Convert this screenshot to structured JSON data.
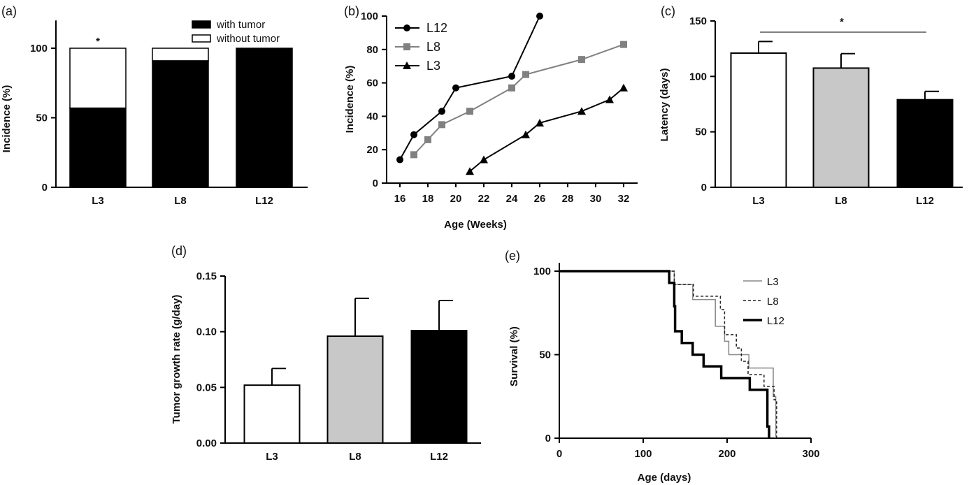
{
  "chart_data": [
    {
      "panel_label": "(a)",
      "type": "bar",
      "stacked": true,
      "categories": [
        "L3",
        "L8",
        "L12"
      ],
      "series": [
        {
          "name": "with tumor",
          "values": [
            57,
            91,
            100
          ],
          "color": "#000000"
        },
        {
          "name": "without tumor",
          "values": [
            43,
            9,
            0
          ],
          "color": "#ffffff"
        }
      ],
      "ylabel": "Incidence (%)",
      "ylim": [
        0,
        120
      ],
      "yticks": [
        0,
        50,
        100
      ],
      "legend": "top-right",
      "annotations": [
        {
          "text": "*",
          "category": "L3"
        }
      ]
    },
    {
      "panel_label": "(b)",
      "type": "line",
      "xlabel": "Age (Weeks)",
      "ylabel": "Incidence (%)",
      "xlim": [
        15,
        33
      ],
      "ylim": [
        0,
        100
      ],
      "xticks": [
        16,
        18,
        20,
        22,
        24,
        26,
        28,
        30,
        32
      ],
      "yticks": [
        0,
        20,
        40,
        60,
        80,
        100
      ],
      "legend": "top-left",
      "series": [
        {
          "name": "L12",
          "marker": "circle",
          "color": "#000000",
          "x": [
            16,
            17,
            19,
            20,
            24,
            26
          ],
          "y": [
            14,
            29,
            43,
            57,
            64,
            100
          ]
        },
        {
          "name": "L8",
          "marker": "square",
          "color": "#808080",
          "x": [
            17,
            18,
            19,
            21,
            24,
            25,
            29,
            32
          ],
          "y": [
            17,
            26,
            35,
            43,
            57,
            65,
            74,
            83
          ]
        },
        {
          "name": "L3",
          "marker": "triangle",
          "color": "#000000",
          "x": [
            21,
            22,
            25,
            26,
            29,
            31,
            32
          ],
          "y": [
            7,
            14,
            29,
            36,
            43,
            50,
            57
          ]
        }
      ]
    },
    {
      "panel_label": "(c)",
      "type": "bar",
      "categories": [
        "L3",
        "L8",
        "L12"
      ],
      "values": [
        121,
        107.5,
        79
      ],
      "errors": [
        10.5,
        13,
        7.5
      ],
      "colors": [
        "#ffffff",
        "#c8c8c8",
        "#000000"
      ],
      "ylabel": "Latency (days)",
      "ylim": [
        0,
        150
      ],
      "yticks": [
        0,
        50,
        100,
        150
      ],
      "annotations": [
        {
          "text": "*",
          "from": "L3",
          "to": "L12"
        }
      ]
    },
    {
      "panel_label": "(d)",
      "type": "bar",
      "categories": [
        "L3",
        "L8",
        "L12"
      ],
      "values": [
        0.052,
        0.096,
        0.101
      ],
      "errors": [
        0.015,
        0.034,
        0.027
      ],
      "colors": [
        "#ffffff",
        "#c8c8c8",
        "#000000"
      ],
      "ylabel": "Tumor growth rate (g/day)",
      "ylim": [
        0,
        0.15
      ],
      "yticks": [
        "0.00",
        "0.05",
        "0.10",
        "0.15"
      ]
    },
    {
      "panel_label": "(e)",
      "type": "line",
      "step": true,
      "xlabel": "Age (days)",
      "ylabel": "Survival (%)",
      "xlim": [
        0,
        300
      ],
      "ylim": [
        0,
        100
      ],
      "xticks": [
        0,
        100,
        200,
        300
      ],
      "yticks": [
        0,
        50,
        100
      ],
      "legend": "top-right",
      "series": [
        {
          "name": "L3",
          "style": "thin-gray",
          "color": "#888888",
          "points": [
            [
              0,
              100
            ],
            [
              137,
              92
            ],
            [
              159,
              83
            ],
            [
              186,
              67
            ],
            [
              197,
              58
            ],
            [
              202,
              50
            ],
            [
              226,
              42
            ],
            [
              255,
              25
            ],
            [
              258,
              0
            ]
          ]
        },
        {
          "name": "L8",
          "style": "dashed",
          "color": "#222222",
          "points": [
            [
              0,
              100
            ],
            [
              137,
              92
            ],
            [
              160,
              85
            ],
            [
              192,
              77
            ],
            [
              197,
              62
            ],
            [
              211,
              54
            ],
            [
              217,
              46
            ],
            [
              225,
              38
            ],
            [
              244,
              31
            ],
            [
              256,
              23
            ],
            [
              259,
              0
            ]
          ]
        },
        {
          "name": "L12",
          "style": "thick",
          "color": "#000000",
          "points": [
            [
              0,
              100
            ],
            [
              131,
              93
            ],
            [
              137,
              79
            ],
            [
              138,
              64
            ],
            [
              146,
              57
            ],
            [
              159,
              50
            ],
            [
              172,
              43
            ],
            [
              193,
              36
            ],
            [
              227,
              29
            ],
            [
              248,
              7
            ],
            [
              250,
              0
            ]
          ]
        }
      ]
    }
  ]
}
